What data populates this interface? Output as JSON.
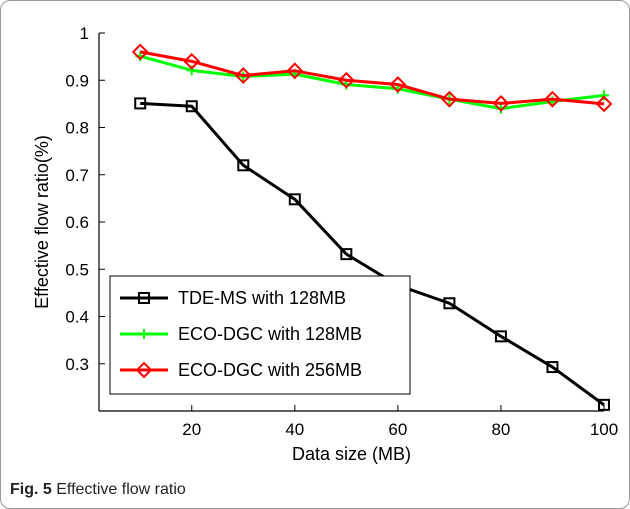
{
  "caption": {
    "fig_label": "Fig. 5",
    "text": "Effective flow ratio"
  },
  "chart_data": {
    "type": "line",
    "title": "",
    "xlabel": "Data size (MB)",
    "ylabel": "Effective flow ratio(%)",
    "xlim": [
      2,
      100
    ],
    "ylim": [
      0.2,
      1.0
    ],
    "xticks": [
      20,
      40,
      60,
      80,
      100
    ],
    "yticks": [
      0.3,
      0.4,
      0.5,
      0.6,
      0.7,
      0.8,
      0.9,
      1
    ],
    "grid": false,
    "legend_position": "bottom-left",
    "x": [
      10,
      20,
      30,
      40,
      50,
      60,
      70,
      80,
      90,
      100
    ],
    "series": [
      {
        "name": "TDE-MS with 128MB",
        "color": "#000000",
        "marker": "square",
        "values": [
          0.851,
          0.845,
          0.72,
          0.648,
          0.532,
          0.466,
          0.428,
          0.358,
          0.293,
          0.213
        ]
      },
      {
        "name": "ECO-DGC with 128MB",
        "color": "#00ff00",
        "marker": "plus",
        "values": [
          0.951,
          0.921,
          0.908,
          0.913,
          0.891,
          0.882,
          0.86,
          0.84,
          0.855,
          0.868
        ]
      },
      {
        "name": "ECO-DGC with 256MB",
        "color": "#ff0000",
        "marker": "diamond",
        "values": [
          0.96,
          0.94,
          0.91,
          0.92,
          0.9,
          0.891,
          0.86,
          0.851,
          0.86,
          0.85
        ]
      }
    ]
  }
}
